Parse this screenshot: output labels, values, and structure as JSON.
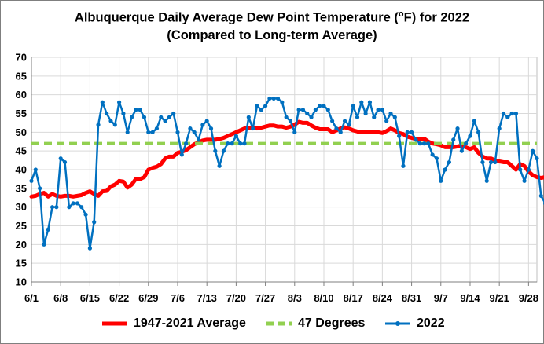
{
  "chart_data": {
    "type": "line",
    "title_line1": "Albuquerque Daily Average Dew Point Temperature (",
    "title_sup": "o",
    "title_line1_end": "F) for 2022",
    "title_line2": "(Compared to Long-term Average)",
    "ylim": [
      10,
      70
    ],
    "yticks": [
      "10",
      "15",
      "20",
      "25",
      "30",
      "35",
      "40",
      "45",
      "50",
      "55",
      "60",
      "65",
      "70"
    ],
    "xlim": [
      0,
      121
    ],
    "xticks": [
      {
        "day": 0,
        "label": "6/1"
      },
      {
        "day": 7,
        "label": "6/8"
      },
      {
        "day": 14,
        "label": "6/15"
      },
      {
        "day": 21,
        "label": "6/22"
      },
      {
        "day": 28,
        "label": "6/29"
      },
      {
        "day": 35,
        "label": "7/6"
      },
      {
        "day": 42,
        "label": "7/13"
      },
      {
        "day": 49,
        "label": "7/20"
      },
      {
        "day": 56,
        "label": "7/27"
      },
      {
        "day": 63,
        "label": "8/3"
      },
      {
        "day": 70,
        "label": "8/10"
      },
      {
        "day": 77,
        "label": "8/17"
      },
      {
        "day": 84,
        "label": "8/24"
      },
      {
        "day": 91,
        "label": "8/31"
      },
      {
        "day": 98,
        "label": "9/7"
      },
      {
        "day": 105,
        "label": "9/14"
      },
      {
        "day": 112,
        "label": "9/21"
      },
      {
        "day": 119,
        "label": "9/28"
      }
    ],
    "grid": true,
    "legend_position": "bottom",
    "series": [
      {
        "name": "1947-2021 Average",
        "color": "#ff0000",
        "style": "thick-solid",
        "values": [
          32.8,
          33.0,
          33.5,
          33.8,
          32.8,
          33.5,
          33.0,
          32.8,
          33.0,
          33.0,
          32.8,
          33.0,
          33.2,
          33.8,
          34.2,
          33.5,
          33.0,
          34.2,
          34.3,
          35.5,
          36.0,
          37.0,
          36.8,
          35.2,
          36.0,
          37.5,
          37.5,
          38.0,
          40.0,
          40.5,
          40.8,
          41.5,
          43.0,
          43.5,
          43.5,
          44.5,
          44.8,
          45.2,
          46.0,
          46.8,
          47.3,
          47.8,
          48.0,
          48.0,
          48.0,
          48.2,
          48.5,
          49.0,
          49.5,
          50.0,
          50.5,
          51.0,
          51.2,
          51.2,
          51.0,
          51.2,
          51.5,
          51.8,
          51.8,
          51.5,
          51.5,
          51.2,
          51.5,
          52.0,
          52.8,
          52.5,
          52.5,
          51.8,
          51.2,
          50.8,
          50.8,
          50.8,
          50.0,
          50.5,
          51.0,
          51.3,
          51.0,
          50.5,
          50.2,
          50.0,
          50.0,
          50.0,
          50.0,
          50.0,
          49.8,
          50.3,
          51.0,
          50.5,
          49.8,
          49.5,
          48.8,
          48.5,
          48.2,
          48.3,
          48.3,
          47.5,
          47.0,
          46.8,
          46.5,
          46.0,
          46.0,
          46.0,
          46.2,
          46.5,
          46.0,
          45.5,
          46.0,
          44.5,
          43.5,
          43.0,
          43.0,
          42.5,
          42.2,
          42.0,
          42.0,
          41.0,
          40.0,
          41.5,
          41.0,
          39.5,
          38.5,
          38.0,
          37.8,
          38.0,
          38.2,
          38.0
        ]
      },
      {
        "name": "47 Degrees",
        "color": "#92d050",
        "style": "dashed",
        "values": [
          47,
          47
        ]
      },
      {
        "name": "2022",
        "color": "#0070c0",
        "style": "line-markers",
        "values": [
          37,
          40,
          35,
          20,
          24,
          30,
          30,
          43,
          42,
          30,
          31,
          31,
          30,
          28,
          19,
          26,
          52,
          58,
          55,
          53,
          52,
          58,
          55,
          50,
          54,
          56,
          56,
          54,
          50,
          50,
          51,
          54,
          53,
          54,
          55,
          50,
          44,
          47,
          51,
          50,
          48,
          52,
          53,
          51,
          45,
          41,
          45,
          47,
          47,
          49,
          47,
          47,
          54,
          51,
          57,
          56,
          57,
          59,
          59,
          59,
          58,
          54,
          53,
          50,
          56,
          56,
          55,
          54,
          56,
          57,
          57,
          56,
          53,
          51,
          50,
          53,
          52,
          57,
          54,
          58,
          55,
          58,
          54,
          56,
          56,
          53,
          55,
          54,
          49,
          41,
          50,
          50,
          48,
          47,
          47,
          47,
          44,
          43,
          37,
          40,
          42,
          48,
          51,
          45,
          47,
          49,
          53,
          50,
          42,
          37,
          42,
          42,
          51,
          55,
          54,
          55,
          55,
          40,
          37,
          40,
          45,
          43,
          33,
          31
        ]
      }
    ]
  },
  "legend": {
    "items": [
      {
        "label": "1947-2021 Average",
        "color": "#ff0000"
      },
      {
        "label": "47 Degrees",
        "color": "#92d050"
      },
      {
        "label": "2022",
        "color": "#0070c0"
      }
    ]
  }
}
